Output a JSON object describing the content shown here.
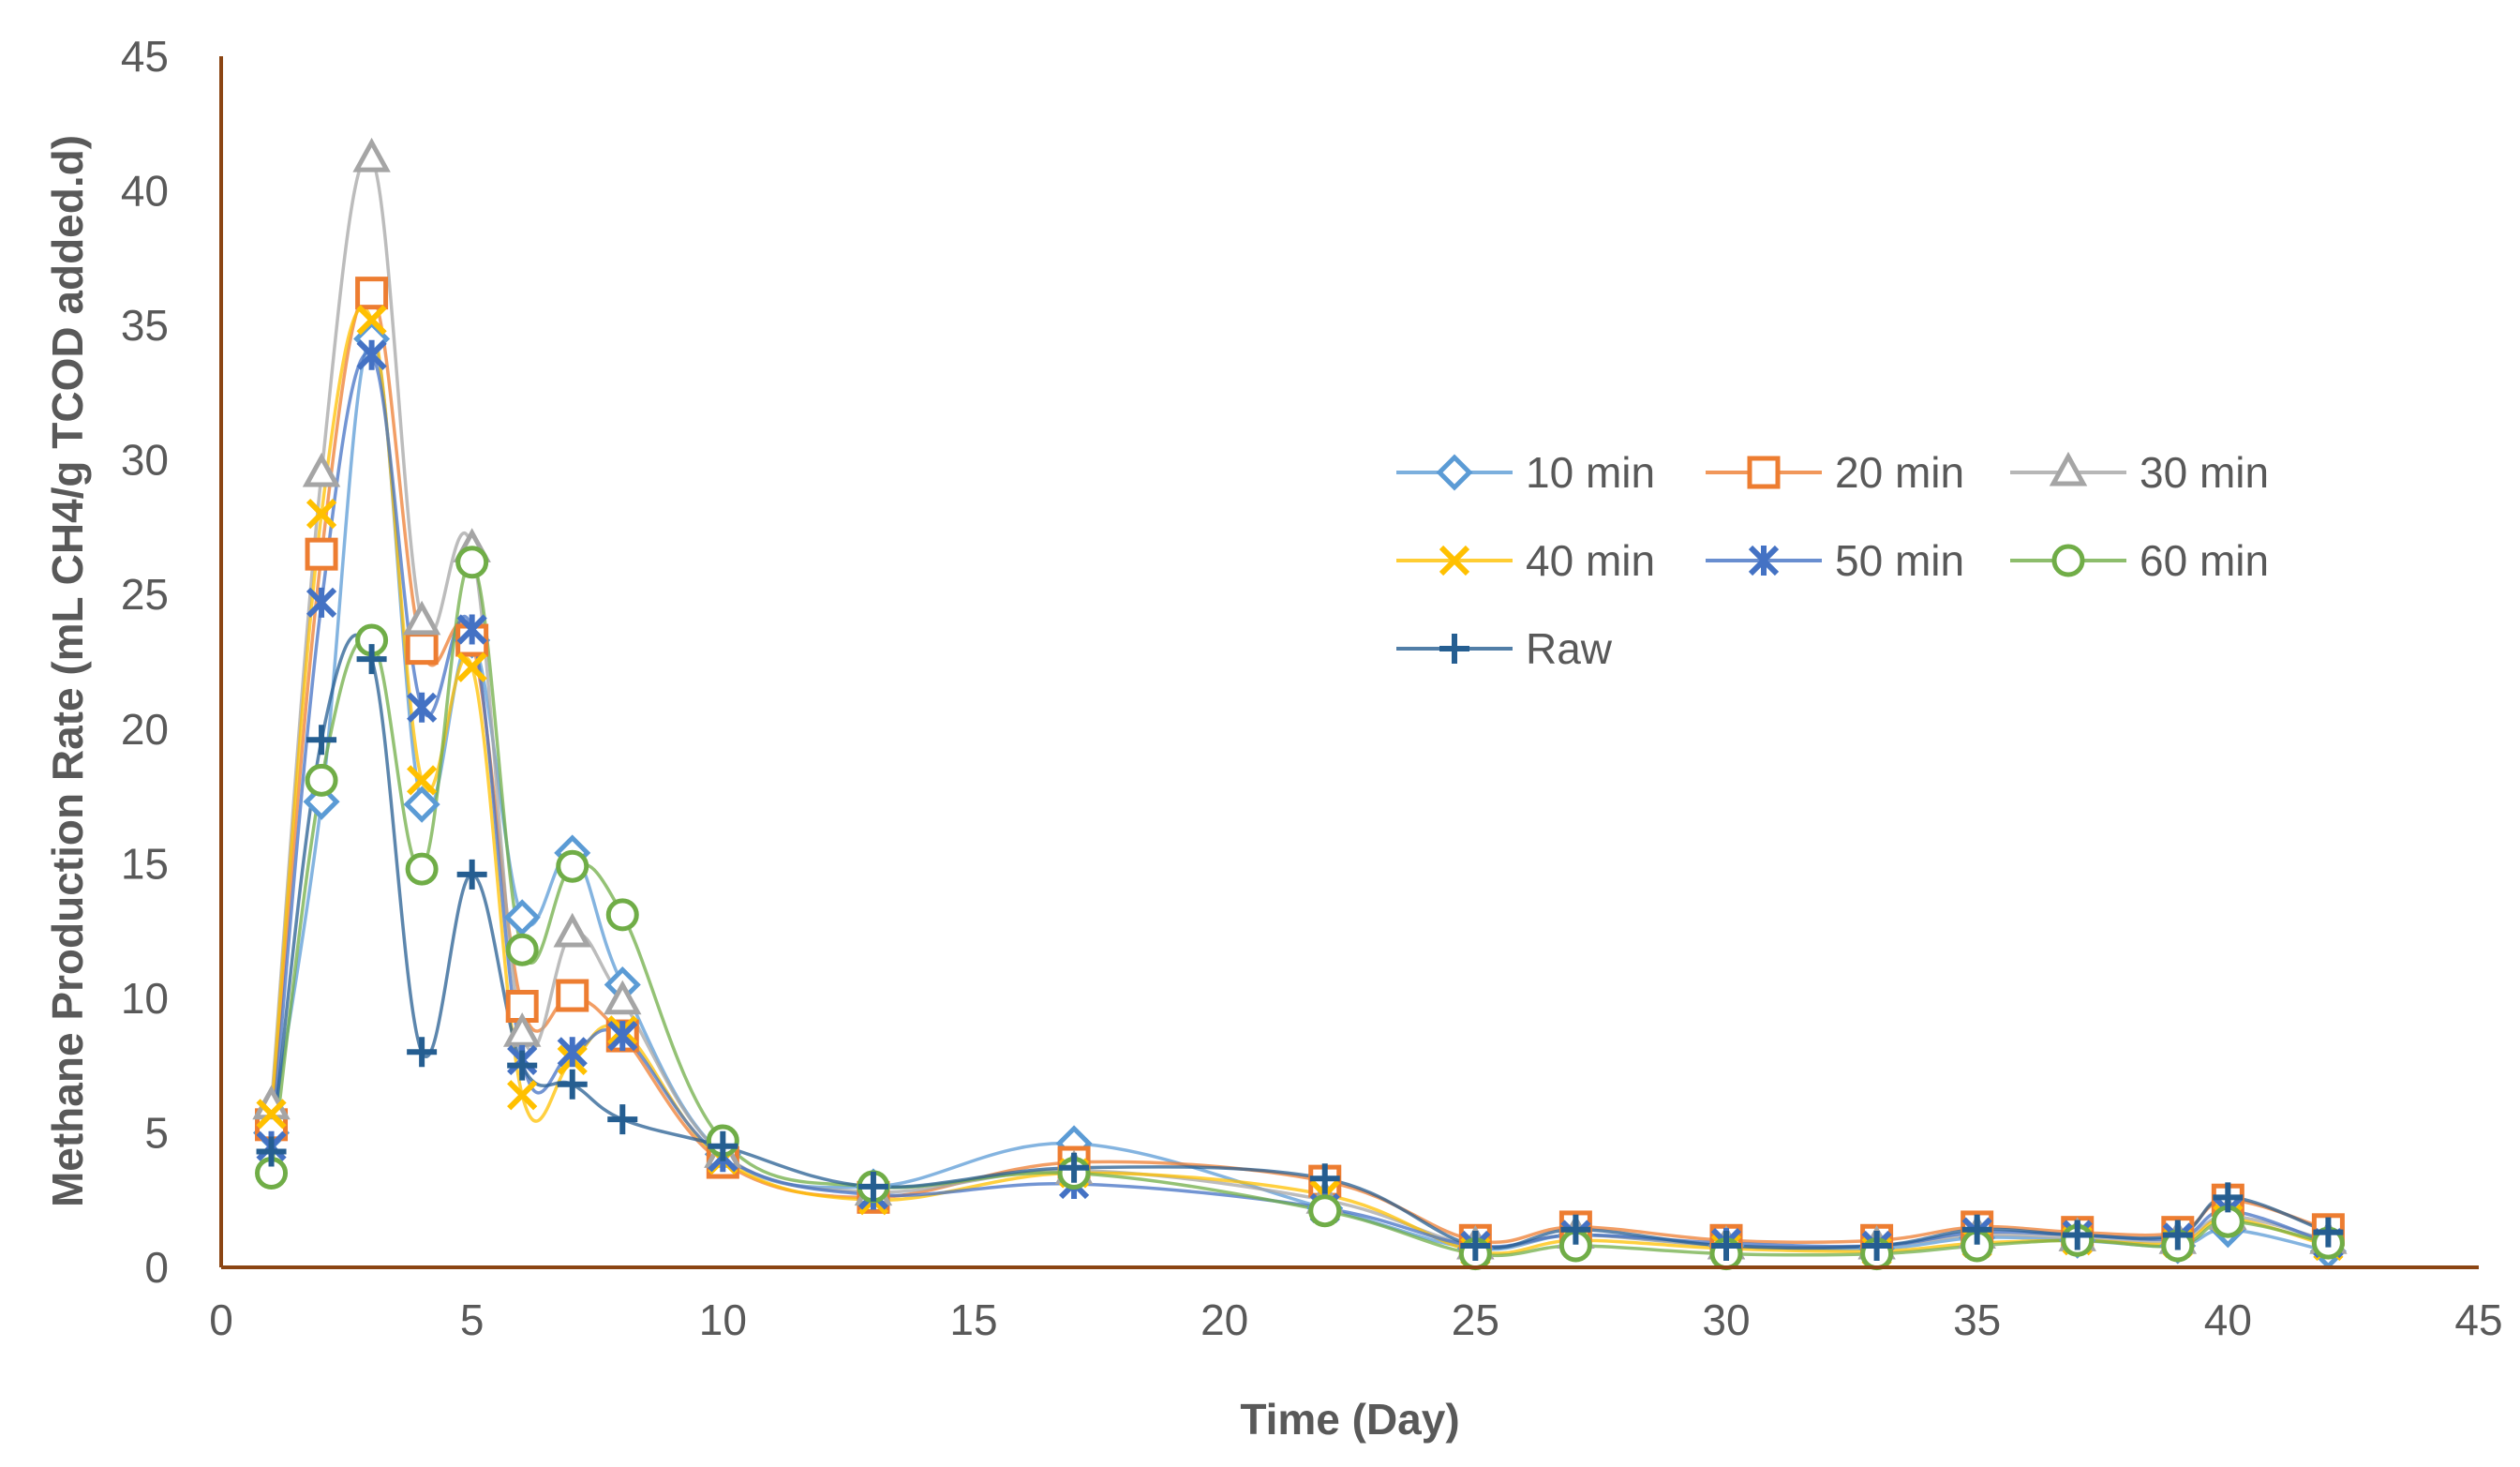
{
  "chart_data": {
    "type": "line",
    "xlabel": "Time (Day)",
    "ylabel": "Methane Production Rate (mL CH4/g TCOD added.d)",
    "xlim": [
      0,
      45
    ],
    "ylim": [
      0,
      45
    ],
    "xticks": [
      "0",
      "5",
      "10",
      "15",
      "20",
      "25",
      "30",
      "35",
      "40",
      "45"
    ],
    "yticks": [
      "0",
      "5",
      "10",
      "15",
      "20",
      "25",
      "30",
      "35",
      "40",
      "45"
    ],
    "grid": false,
    "smooth": true,
    "legend_position": "right",
    "x": [
      1,
      2,
      3,
      4,
      5,
      6,
      7,
      8,
      10,
      13,
      17,
      22,
      25,
      27,
      30,
      33,
      35,
      37,
      39,
      40,
      42
    ],
    "series": [
      {
        "name": "10 min",
        "color": "#5B9BD5",
        "marker": "diamond",
        "values": [
          5.0,
          17.3,
          34.5,
          17.2,
          23.3,
          13.0,
          15.4,
          10.5,
          4.2,
          3.0,
          4.6,
          2.2,
          0.7,
          1.2,
          0.8,
          0.7,
          1.1,
          1.0,
          0.8,
          1.4,
          0.6
        ]
      },
      {
        "name": "20 min",
        "color": "#ED7D31",
        "marker": "square",
        "values": [
          5.3,
          26.5,
          36.2,
          23.0,
          23.3,
          9.7,
          10.1,
          8.6,
          3.9,
          2.6,
          3.9,
          3.2,
          1.0,
          1.5,
          1.0,
          1.0,
          1.5,
          1.3,
          1.3,
          2.5,
          1.4
        ]
      },
      {
        "name": "30 min",
        "color": "#A5A5A5",
        "marker": "triangle",
        "values": [
          6.0,
          29.5,
          41.2,
          24.0,
          26.7,
          8.7,
          12.4,
          9.9,
          4.2,
          2.8,
          3.6,
          2.5,
          0.8,
          1.2,
          0.8,
          0.8,
          1.2,
          1.1,
          1.0,
          1.9,
          1.0
        ]
      },
      {
        "name": "40 min",
        "color": "#FFC000",
        "marker": "x",
        "values": [
          5.7,
          28.0,
          35.2,
          18.1,
          22.3,
          6.4,
          7.7,
          8.8,
          4.0,
          2.5,
          3.5,
          2.7,
          0.6,
          1.0,
          0.7,
          0.6,
          0.9,
          1.0,
          0.9,
          1.8,
          0.8
        ]
      },
      {
        "name": "50 min",
        "color": "#4472C4",
        "marker": "star",
        "values": [
          4.5,
          24.7,
          33.9,
          20.8,
          23.7,
          7.7,
          8.0,
          8.6,
          4.1,
          2.7,
          3.1,
          2.2,
          0.8,
          1.2,
          0.9,
          0.8,
          1.3,
          1.2,
          1.1,
          2.1,
          0.9
        ]
      },
      {
        "name": "60 min",
        "color": "#70AD47",
        "marker": "circle",
        "values": [
          3.5,
          18.1,
          23.3,
          14.8,
          26.2,
          11.8,
          14.9,
          13.1,
          4.7,
          3.0,
          3.5,
          2.1,
          0.5,
          0.8,
          0.5,
          0.5,
          0.8,
          1.0,
          0.8,
          1.7,
          0.9
        ]
      },
      {
        "name": "Raw",
        "color": "#255E91",
        "marker": "plus",
        "values": [
          4.3,
          19.6,
          22.6,
          8.0,
          14.6,
          7.5,
          6.8,
          5.5,
          4.5,
          3.0,
          3.7,
          3.3,
          0.8,
          1.4,
          0.8,
          0.8,
          1.4,
          1.2,
          1.2,
          2.6,
          1.3
        ]
      }
    ]
  }
}
